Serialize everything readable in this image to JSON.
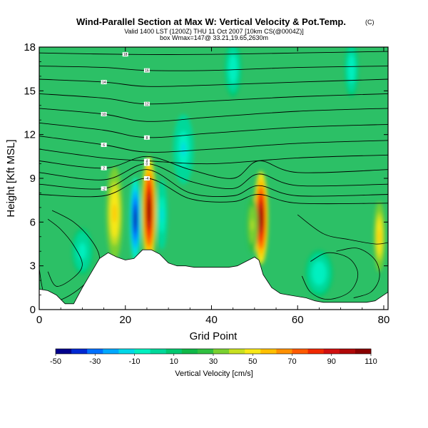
{
  "chart_data": {
    "type": "contour",
    "title": "Wind-Parallel Section at Max W: Vertical Velocity & Pot.Temp.",
    "title_mark": "(C)",
    "subtitle_1": "Valid 1400 LST (1200Z) THU 11 Oct 2007 [10km CS(@0004Z)]",
    "subtitle_2": "box Wmax=147@ 33.21,19.65,2630m",
    "xlabel": "Grid Point",
    "ylabel": "Height [Kft MSL]",
    "xlim": [
      0,
      81
    ],
    "ylim": [
      0,
      18
    ],
    "x_ticks": [
      "0",
      "20",
      "40",
      "60",
      "80"
    ],
    "y_ticks": [
      "0",
      "3",
      "6",
      "9",
      "12",
      "15",
      "18"
    ],
    "colorbar": {
      "label": "Vertical Velocity [cm/s]",
      "tick_labels": [
        "-50",
        "-30",
        "-10",
        "10",
        "30",
        "50",
        "70",
        "90",
        "110"
      ],
      "colors": [
        "#00008c",
        "#0028d2",
        "#0070ff",
        "#00a8ff",
        "#00d8e8",
        "#00f0c0",
        "#00d89a",
        "#00c870",
        "#10b848",
        "#30c040",
        "#7ad030",
        "#c8e020",
        "#f8e818",
        "#ffc000",
        "#ff9000",
        "#ff5a00",
        "#f02800",
        "#d01010",
        "#b00808",
        "#880000"
      ]
    },
    "background_color": "#2cc066",
    "terrain": [
      [
        0,
        1.4
      ],
      [
        2,
        1.3
      ],
      [
        4,
        1
      ],
      [
        6,
        0.4
      ],
      [
        8,
        0.4
      ],
      [
        10,
        1.5
      ],
      [
        12,
        2.5
      ],
      [
        14,
        3.5
      ],
      [
        16,
        3.9
      ],
      [
        18,
        3.6
      ],
      [
        20,
        3.4
      ],
      [
        22,
        3.5
      ],
      [
        24,
        4.1
      ],
      [
        26,
        4.1
      ],
      [
        28,
        3.8
      ],
      [
        30,
        3.2
      ],
      [
        32,
        3.0
      ],
      [
        34,
        3.0
      ],
      [
        36,
        2.9
      ],
      [
        38,
        2.9
      ],
      [
        40,
        2.9
      ],
      [
        42,
        2.9
      ],
      [
        44,
        2.9
      ],
      [
        46,
        3.0
      ],
      [
        48,
        3.3
      ],
      [
        50,
        3.6
      ],
      [
        51,
        3.4
      ],
      [
        52,
        2.4
      ],
      [
        54,
        1.5
      ],
      [
        56,
        1.1
      ],
      [
        58,
        1.0
      ],
      [
        60,
        0.9
      ],
      [
        62,
        0.8
      ],
      [
        64,
        0.6
      ],
      [
        66,
        0.5
      ],
      [
        68,
        0.5
      ],
      [
        70,
        0.5
      ],
      [
        72,
        0.5
      ],
      [
        74,
        0.5
      ],
      [
        76,
        0.5
      ],
      [
        78,
        0.6
      ],
      [
        80,
        1.0
      ],
      [
        81,
        1.2
      ]
    ],
    "w_features": [
      {
        "x": 17.5,
        "y": 6.6,
        "sx": 1.2,
        "sy": 2.0,
        "w": 60
      },
      {
        "x": 22.3,
        "y": 6.2,
        "sx": 0.8,
        "sy": 1.8,
        "w": -50
      },
      {
        "x": 25.5,
        "y": 6.8,
        "sx": 1.0,
        "sy": 2.3,
        "w": 110
      },
      {
        "x": 28.5,
        "y": 6.5,
        "sx": 0.8,
        "sy": 1.5,
        "w": -15
      },
      {
        "x": 51.5,
        "y": 6.3,
        "sx": 1.0,
        "sy": 2.0,
        "w": 110
      },
      {
        "x": 49.5,
        "y": 5.8,
        "sx": 0.8,
        "sy": 1.2,
        "w": 40
      },
      {
        "x": 33.5,
        "y": 11.0,
        "sx": 1.5,
        "sy": 1.5,
        "w": -15
      },
      {
        "x": 45.0,
        "y": 16.5,
        "sx": 1.2,
        "sy": 1.2,
        "w": -12
      },
      {
        "x": 65.0,
        "y": 2.5,
        "sx": 2.0,
        "sy": 1.0,
        "w": -12
      },
      {
        "x": 72.5,
        "y": 16.5,
        "sx": 1.0,
        "sy": 1.2,
        "w": -12
      },
      {
        "x": 79.0,
        "y": 5.0,
        "sx": 0.8,
        "sy": 1.5,
        "w": 60
      },
      {
        "x": 10.0,
        "y": 4.0,
        "sx": 1.5,
        "sy": 1.0,
        "w": -10
      }
    ],
    "theta_contours": [
      {
        "label": "18",
        "points": [
          [
            0,
            17.6
          ],
          [
            20,
            17.5
          ],
          [
            40,
            17.5
          ],
          [
            60,
            17.6
          ],
          [
            81,
            17.7
          ]
        ]
      },
      {
        "label": "16",
        "points": [
          [
            0,
            16.7
          ],
          [
            15,
            16.6
          ],
          [
            25,
            16.4
          ],
          [
            40,
            16.4
          ],
          [
            60,
            16.6
          ],
          [
            81,
            16.7
          ]
        ]
      },
      {
        "label": "14",
        "points": [
          [
            0,
            15.8
          ],
          [
            15,
            15.6
          ],
          [
            25,
            15.3
          ],
          [
            40,
            15.4
          ],
          [
            60,
            15.6
          ],
          [
            81,
            15.8
          ]
        ]
      },
      {
        "label": "12",
        "points": [
          [
            0,
            14.8
          ],
          [
            15,
            14.5
          ],
          [
            25,
            14.1
          ],
          [
            40,
            14.3
          ],
          [
            60,
            14.6
          ],
          [
            81,
            14.8
          ]
        ]
      },
      {
        "label": "10",
        "points": [
          [
            0,
            13.8
          ],
          [
            15,
            13.4
          ],
          [
            25,
            12.9
          ],
          [
            40,
            13.2
          ],
          [
            60,
            13.6
          ],
          [
            81,
            13.8
          ]
        ]
      },
      {
        "label": "8",
        "points": [
          [
            0,
            12.8
          ],
          [
            15,
            12.3
          ],
          [
            25,
            11.8
          ],
          [
            40,
            12.1
          ],
          [
            60,
            12.5
          ],
          [
            81,
            12.7
          ]
        ]
      },
      {
        "label": "6",
        "points": [
          [
            0,
            11.9
          ],
          [
            15,
            11.3
          ],
          [
            25,
            10.8
          ],
          [
            40,
            11.0
          ],
          [
            60,
            11.4
          ],
          [
            81,
            11.6
          ]
        ]
      },
      {
        "label": "4",
        "points": [
          [
            0,
            11.0
          ],
          [
            15,
            10.4
          ],
          [
            25,
            10.2
          ],
          [
            40,
            10.0
          ],
          [
            60,
            10.4
          ],
          [
            81,
            10.6
          ]
        ]
      },
      {
        "label": "2",
        "points": [
          [
            0,
            10.2
          ],
          [
            15,
            9.7
          ],
          [
            25,
            10.5
          ],
          [
            35,
            9.6
          ],
          [
            45,
            9.0
          ],
          [
            51,
            10.2
          ],
          [
            60,
            9.4
          ],
          [
            81,
            9.6
          ]
        ]
      },
      {
        "label": "0",
        "points": [
          [
            0,
            9.4
          ],
          [
            15,
            8.9
          ],
          [
            25,
            10.0
          ],
          [
            35,
            8.8
          ],
          [
            45,
            8.3
          ],
          [
            51,
            9.3
          ],
          [
            60,
            8.5
          ],
          [
            81,
            8.6
          ]
        ]
      },
      {
        "label": "-2",
        "points": [
          [
            0,
            8.6
          ],
          [
            15,
            8.3
          ],
          [
            25,
            9.6
          ],
          [
            35,
            8.0
          ],
          [
            45,
            7.8
          ],
          [
            51,
            8.5
          ],
          [
            60,
            7.8
          ],
          [
            81,
            7.9
          ]
        ]
      },
      {
        "label": "-4",
        "points": [
          [
            0,
            7.9
          ],
          [
            15,
            7.8
          ],
          [
            25,
            9.0
          ],
          [
            35,
            7.6
          ],
          [
            45,
            7.4
          ],
          [
            51,
            7.9
          ],
          [
            60,
            7.3
          ],
          [
            81,
            7.3
          ]
        ]
      }
    ],
    "w_contours": [
      {
        "points": [
          [
            3,
            6.8
          ],
          [
            8,
            6.0
          ],
          [
            12,
            4.8
          ],
          [
            14,
            3.6
          ],
          [
            13,
            2.6
          ],
          [
            10,
            1.6
          ],
          [
            6,
            0.8
          ],
          [
            3,
            0.6
          ],
          [
            1,
            1.2
          ],
          [
            0,
            2.8
          ]
        ]
      },
      {
        "points": [
          [
            2,
            6.2
          ],
          [
            5,
            5.5
          ],
          [
            8,
            4.4
          ],
          [
            10,
            3.1
          ],
          [
            8,
            2.2
          ],
          [
            4,
            1.6
          ],
          [
            2,
            2.6
          ]
        ]
      },
      {
        "points": [
          [
            63,
            3.3
          ],
          [
            67,
            3.9
          ],
          [
            72,
            3.5
          ],
          [
            74,
            2.4
          ],
          [
            72,
            1.2
          ],
          [
            67,
            0.7
          ],
          [
            63,
            1.2
          ],
          [
            61,
            2.3
          ]
        ]
      },
      {
        "points": [
          [
            69,
            4.0
          ],
          [
            74,
            4.2
          ],
          [
            78,
            3.4
          ],
          [
            79,
            2.2
          ],
          [
            77,
            1.2
          ],
          [
            73,
            0.8
          ]
        ]
      },
      {
        "points": [
          [
            60,
            6.5
          ],
          [
            66,
            5.2
          ],
          [
            72,
            4.8
          ],
          [
            78,
            4.5
          ],
          [
            81,
            4.6
          ]
        ]
      }
    ]
  }
}
